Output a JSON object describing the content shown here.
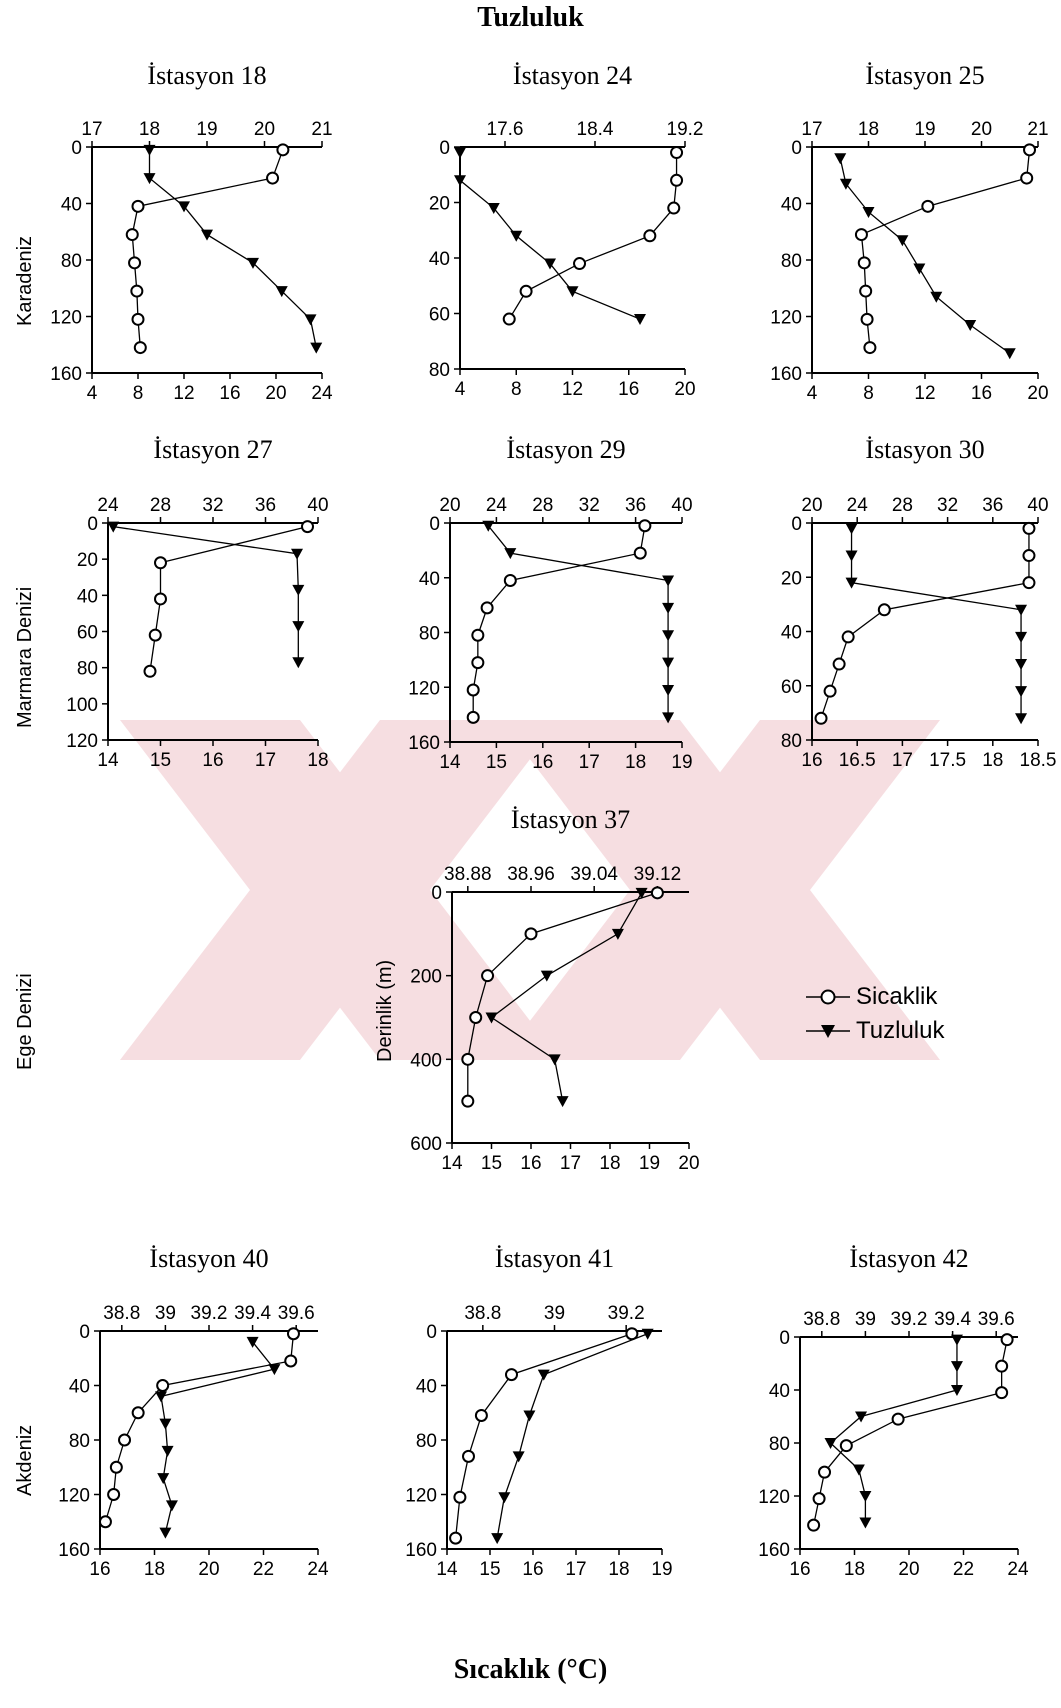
{
  "page": {
    "top_title": "Tuzluluk",
    "bottom_title": "Sıcaklık (°C)",
    "regions": [
      "Karadeniz",
      "Marmara Denizi",
      "Ege Denizi",
      "Akdeniz"
    ],
    "depth_label": "Derinlik (m)"
  },
  "legend": {
    "temp": "Sicaklik",
    "sal": "Tuzluluk"
  },
  "colors": {
    "ink": "#000000",
    "watermark": "#f3c9cf"
  },
  "chart_data": [
    {
      "type": "line",
      "title": "İstasyon 18",
      "ylim": [
        160,
        0
      ],
      "yticks": [
        0,
        40,
        80,
        120,
        160
      ],
      "temp_range": [
        4,
        24
      ],
      "temp_ticks": [
        4,
        8,
        12,
        16,
        20,
        24
      ],
      "sal_range": [
        17,
        21
      ],
      "sal_ticks": [
        17,
        18,
        19,
        20,
        21
      ],
      "series": [
        {
          "name": "Sicaklik",
          "points": [
            [
              20.6,
              2
            ],
            [
              19.7,
              22
            ],
            [
              8.0,
              42
            ],
            [
              7.5,
              62
            ],
            [
              7.7,
              82
            ],
            [
              7.9,
              102
            ],
            [
              8.0,
              122
            ],
            [
              8.2,
              142
            ]
          ]
        },
        {
          "name": "Tuzluluk",
          "points": [
            [
              18.0,
              2
            ],
            [
              18.0,
              22
            ],
            [
              18.6,
              42
            ],
            [
              19.0,
              62
            ],
            [
              19.8,
              82
            ],
            [
              20.3,
              102
            ],
            [
              20.8,
              122
            ],
            [
              20.9,
              142
            ]
          ]
        }
      ]
    },
    {
      "type": "line",
      "title": "İstasyon 24",
      "ylim": [
        80,
        0
      ],
      "yticks": [
        0,
        20,
        40,
        60,
        80
      ],
      "temp_range": [
        4,
        20
      ],
      "temp_ticks": [
        4,
        8,
        12,
        16,
        20
      ],
      "sal_range": [
        17.2,
        19.2
      ],
      "sal_ticks": [
        17.6,
        18.4,
        19.2
      ],
      "series": [
        {
          "name": "Sicaklik",
          "points": [
            [
              19.4,
              2
            ],
            [
              19.4,
              12
            ],
            [
              19.2,
              22
            ],
            [
              17.5,
              32
            ],
            [
              12.5,
              42
            ],
            [
              8.7,
              52
            ],
            [
              7.5,
              62
            ]
          ]
        },
        {
          "name": "Tuzluluk",
          "points": [
            [
              17.2,
              2
            ],
            [
              17.2,
              12
            ],
            [
              17.5,
              22
            ],
            [
              17.7,
              32
            ],
            [
              18.0,
              42
            ],
            [
              18.2,
              52
            ],
            [
              18.8,
              62
            ]
          ]
        }
      ]
    },
    {
      "type": "line",
      "title": "İstasyon 25",
      "ylim": [
        160,
        0
      ],
      "yticks": [
        0,
        40,
        80,
        120,
        160
      ],
      "temp_range": [
        4,
        20
      ],
      "temp_ticks": [
        4,
        8,
        12,
        16,
        20
      ],
      "sal_range": [
        17,
        21
      ],
      "sal_ticks": [
        17,
        18,
        19,
        20,
        21
      ],
      "series": [
        {
          "name": "Sicaklik",
          "points": [
            [
              19.4,
              2
            ],
            [
              19.2,
              22
            ],
            [
              12.2,
              42
            ],
            [
              7.5,
              62
            ],
            [
              7.7,
              82
            ],
            [
              7.8,
              102
            ],
            [
              7.9,
              122
            ],
            [
              8.1,
              142
            ]
          ]
        },
        {
          "name": "Tuzluluk",
          "points": [
            [
              17.5,
              8
            ],
            [
              17.6,
              26
            ],
            [
              18.0,
              46
            ],
            [
              18.6,
              66
            ],
            [
              18.9,
              86
            ],
            [
              19.2,
              106
            ],
            [
              19.8,
              126
            ],
            [
              20.5,
              146
            ]
          ]
        }
      ]
    },
    {
      "type": "line",
      "title": "İstasyon 27",
      "ylim": [
        120,
        0
      ],
      "yticks": [
        0,
        20,
        40,
        60,
        80,
        100,
        120
      ],
      "temp_range": [
        14,
        18
      ],
      "temp_ticks": [
        14,
        15,
        16,
        17,
        18
      ],
      "sal_range": [
        24,
        40
      ],
      "sal_ticks": [
        24,
        28,
        32,
        36,
        40
      ],
      "series": [
        {
          "name": "Sicaklik",
          "points": [
            [
              17.8,
              2
            ],
            [
              15.0,
              22
            ],
            [
              15.0,
              42
            ],
            [
              14.9,
              62
            ],
            [
              14.8,
              82
            ]
          ]
        },
        {
          "name": "Tuzluluk",
          "points": [
            [
              24.4,
              2
            ],
            [
              38.4,
              17
            ],
            [
              38.5,
              37
            ],
            [
              38.5,
              57
            ],
            [
              38.5,
              77
            ]
          ]
        }
      ]
    },
    {
      "type": "line",
      "title": "İstasyon 29",
      "ylim": [
        160,
        0
      ],
      "yticks": [
        0,
        40,
        80,
        120,
        160
      ],
      "temp_range": [
        14,
        19
      ],
      "temp_ticks": [
        14,
        15,
        16,
        17,
        18,
        19
      ],
      "sal_range": [
        20,
        40
      ],
      "sal_ticks": [
        20,
        24,
        28,
        32,
        36,
        40
      ],
      "series": [
        {
          "name": "Sicaklik",
          "points": [
            [
              18.2,
              2
            ],
            [
              18.1,
              22
            ],
            [
              15.3,
              42
            ],
            [
              14.8,
              62
            ],
            [
              14.6,
              82
            ],
            [
              14.6,
              102
            ],
            [
              14.5,
              122
            ],
            [
              14.5,
              142
            ]
          ]
        },
        {
          "name": "Tuzluluk",
          "points": [
            [
              23.3,
              2
            ],
            [
              25.2,
              22
            ],
            [
              38.8,
              42
            ],
            [
              38.8,
              62
            ],
            [
              38.8,
              82
            ],
            [
              38.8,
              102
            ],
            [
              38.8,
              122
            ],
            [
              38.8,
              142
            ]
          ]
        }
      ]
    },
    {
      "type": "line",
      "title": "İstasyon 30",
      "ylim": [
        80,
        0
      ],
      "yticks": [
        0,
        20,
        40,
        60,
        80
      ],
      "temp_range": [
        16,
        18.5
      ],
      "temp_ticks": [
        16,
        16.5,
        17,
        17.5,
        18,
        18.5
      ],
      "sal_range": [
        20,
        40
      ],
      "sal_ticks": [
        20,
        24,
        28,
        32,
        36,
        40
      ],
      "series": [
        {
          "name": "Sicaklik",
          "points": [
            [
              18.4,
              2
            ],
            [
              18.4,
              12
            ],
            [
              18.4,
              22
            ],
            [
              16.8,
              32
            ],
            [
              16.4,
              42
            ],
            [
              16.3,
              52
            ],
            [
              16.2,
              62
            ],
            [
              16.1,
              72
            ]
          ]
        },
        {
          "name": "Tuzluluk",
          "points": [
            [
              23.5,
              2
            ],
            [
              23.5,
              12
            ],
            [
              23.5,
              22
            ],
            [
              38.5,
              32
            ],
            [
              38.5,
              42
            ],
            [
              38.5,
              52
            ],
            [
              38.5,
              62
            ],
            [
              38.5,
              72
            ]
          ]
        }
      ]
    },
    {
      "type": "line",
      "title": "İstasyon 37",
      "ylim": [
        600,
        0
      ],
      "yticks": [
        0,
        200,
        400,
        600
      ],
      "temp_range": [
        14,
        20
      ],
      "temp_ticks": [
        14,
        15,
        16,
        17,
        18,
        19,
        20
      ],
      "sal_range": [
        38.86,
        39.16
      ],
      "sal_ticks": [
        38.88,
        38.96,
        39.04,
        39.12
      ],
      "series": [
        {
          "name": "Sicaklik",
          "points": [
            [
              19.2,
              2
            ],
            [
              16.0,
              100
            ],
            [
              14.9,
              200
            ],
            [
              14.6,
              300
            ],
            [
              14.4,
              400
            ],
            [
              14.4,
              500
            ]
          ]
        },
        {
          "name": "Tuzluluk",
          "points": [
            [
              39.1,
              2
            ],
            [
              39.07,
              100
            ],
            [
              38.98,
              200
            ],
            [
              38.91,
              300
            ],
            [
              38.99,
              400
            ],
            [
              39.0,
              500
            ]
          ]
        }
      ]
    },
    {
      "type": "line",
      "title": "İstasyon 40",
      "ylim": [
        160,
        0
      ],
      "yticks": [
        0,
        40,
        80,
        120,
        160
      ],
      "temp_range": [
        16,
        24
      ],
      "temp_ticks": [
        16,
        18,
        20,
        22,
        24
      ],
      "sal_range": [
        38.7,
        39.7
      ],
      "sal_ticks": [
        38.8,
        39,
        39.2,
        39.4,
        39.6
      ],
      "series": [
        {
          "name": "Sicaklik",
          "points": [
            [
              23.1,
              2
            ],
            [
              23.0,
              22
            ],
            [
              18.3,
              40
            ],
            [
              17.4,
              60
            ],
            [
              16.9,
              80
            ],
            [
              16.6,
              100
            ],
            [
              16.5,
              120
            ],
            [
              16.2,
              140
            ]
          ]
        },
        {
          "name": "Tuzluluk",
          "points": [
            [
              39.4,
              8
            ],
            [
              39.5,
              28
            ],
            [
              38.98,
              48
            ],
            [
              39.0,
              68
            ],
            [
              39.01,
              88
            ],
            [
              38.99,
              108
            ],
            [
              39.03,
              128
            ],
            [
              39.0,
              148
            ]
          ]
        }
      ]
    },
    {
      "type": "line",
      "title": "İstasyon 41",
      "ylim": [
        160,
        0
      ],
      "yticks": [
        0,
        40,
        80,
        120,
        160
      ],
      "temp_range": [
        14,
        19
      ],
      "temp_ticks": [
        14,
        15,
        16,
        17,
        18,
        19
      ],
      "sal_range": [
        38.7,
        39.3
      ],
      "sal_ticks": [
        38.8,
        39,
        39.2
      ],
      "series": [
        {
          "name": "Sicaklik",
          "points": [
            [
              18.3,
              2
            ],
            [
              15.5,
              32
            ],
            [
              14.8,
              62
            ],
            [
              14.5,
              92
            ],
            [
              14.3,
              122
            ],
            [
              14.2,
              152
            ]
          ]
        },
        {
          "name": "Tuzluluk",
          "points": [
            [
              39.26,
              2
            ],
            [
              38.97,
              32
            ],
            [
              38.93,
              62
            ],
            [
              38.9,
              92
            ],
            [
              38.86,
              122
            ],
            [
              38.84,
              152
            ]
          ]
        }
      ]
    },
    {
      "type": "line",
      "title": "İstasyon 42",
      "ylim": [
        160,
        0
      ],
      "yticks": [
        0,
        40,
        80,
        120,
        160
      ],
      "temp_range": [
        16,
        24
      ],
      "temp_ticks": [
        16,
        18,
        20,
        22,
        24
      ],
      "sal_range": [
        38.7,
        39.7
      ],
      "sal_ticks": [
        38.8,
        39,
        39.2,
        39.4,
        39.6
      ],
      "series": [
        {
          "name": "Sicaklik",
          "points": [
            [
              23.6,
              2
            ],
            [
              23.4,
              22
            ],
            [
              23.4,
              42
            ],
            [
              19.6,
              62
            ],
            [
              17.7,
              82
            ],
            [
              16.9,
              102
            ],
            [
              16.7,
              122
            ],
            [
              16.5,
              142
            ]
          ]
        },
        {
          "name": "Tuzluluk",
          "points": [
            [
              39.42,
              2
            ],
            [
              39.42,
              22
            ],
            [
              39.42,
              40
            ],
            [
              38.98,
              60
            ],
            [
              38.84,
              80
            ],
            [
              38.97,
              100
            ],
            [
              39.0,
              120
            ],
            [
              39.0,
              140
            ]
          ]
        }
      ]
    }
  ]
}
